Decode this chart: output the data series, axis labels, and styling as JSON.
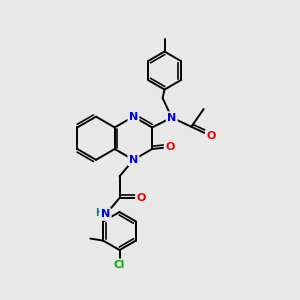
{
  "bg_color": "#e8e8e8",
  "atom_colors": {
    "N": "#0000ee",
    "O": "#ee0000",
    "Cl": "#00aa00",
    "C": "#000000",
    "H": "#008888"
  },
  "bond_color": "#000000",
  "bond_width": 1.4,
  "figsize": [
    3.0,
    3.0
  ],
  "dpi": 100,
  "scale": 22
}
